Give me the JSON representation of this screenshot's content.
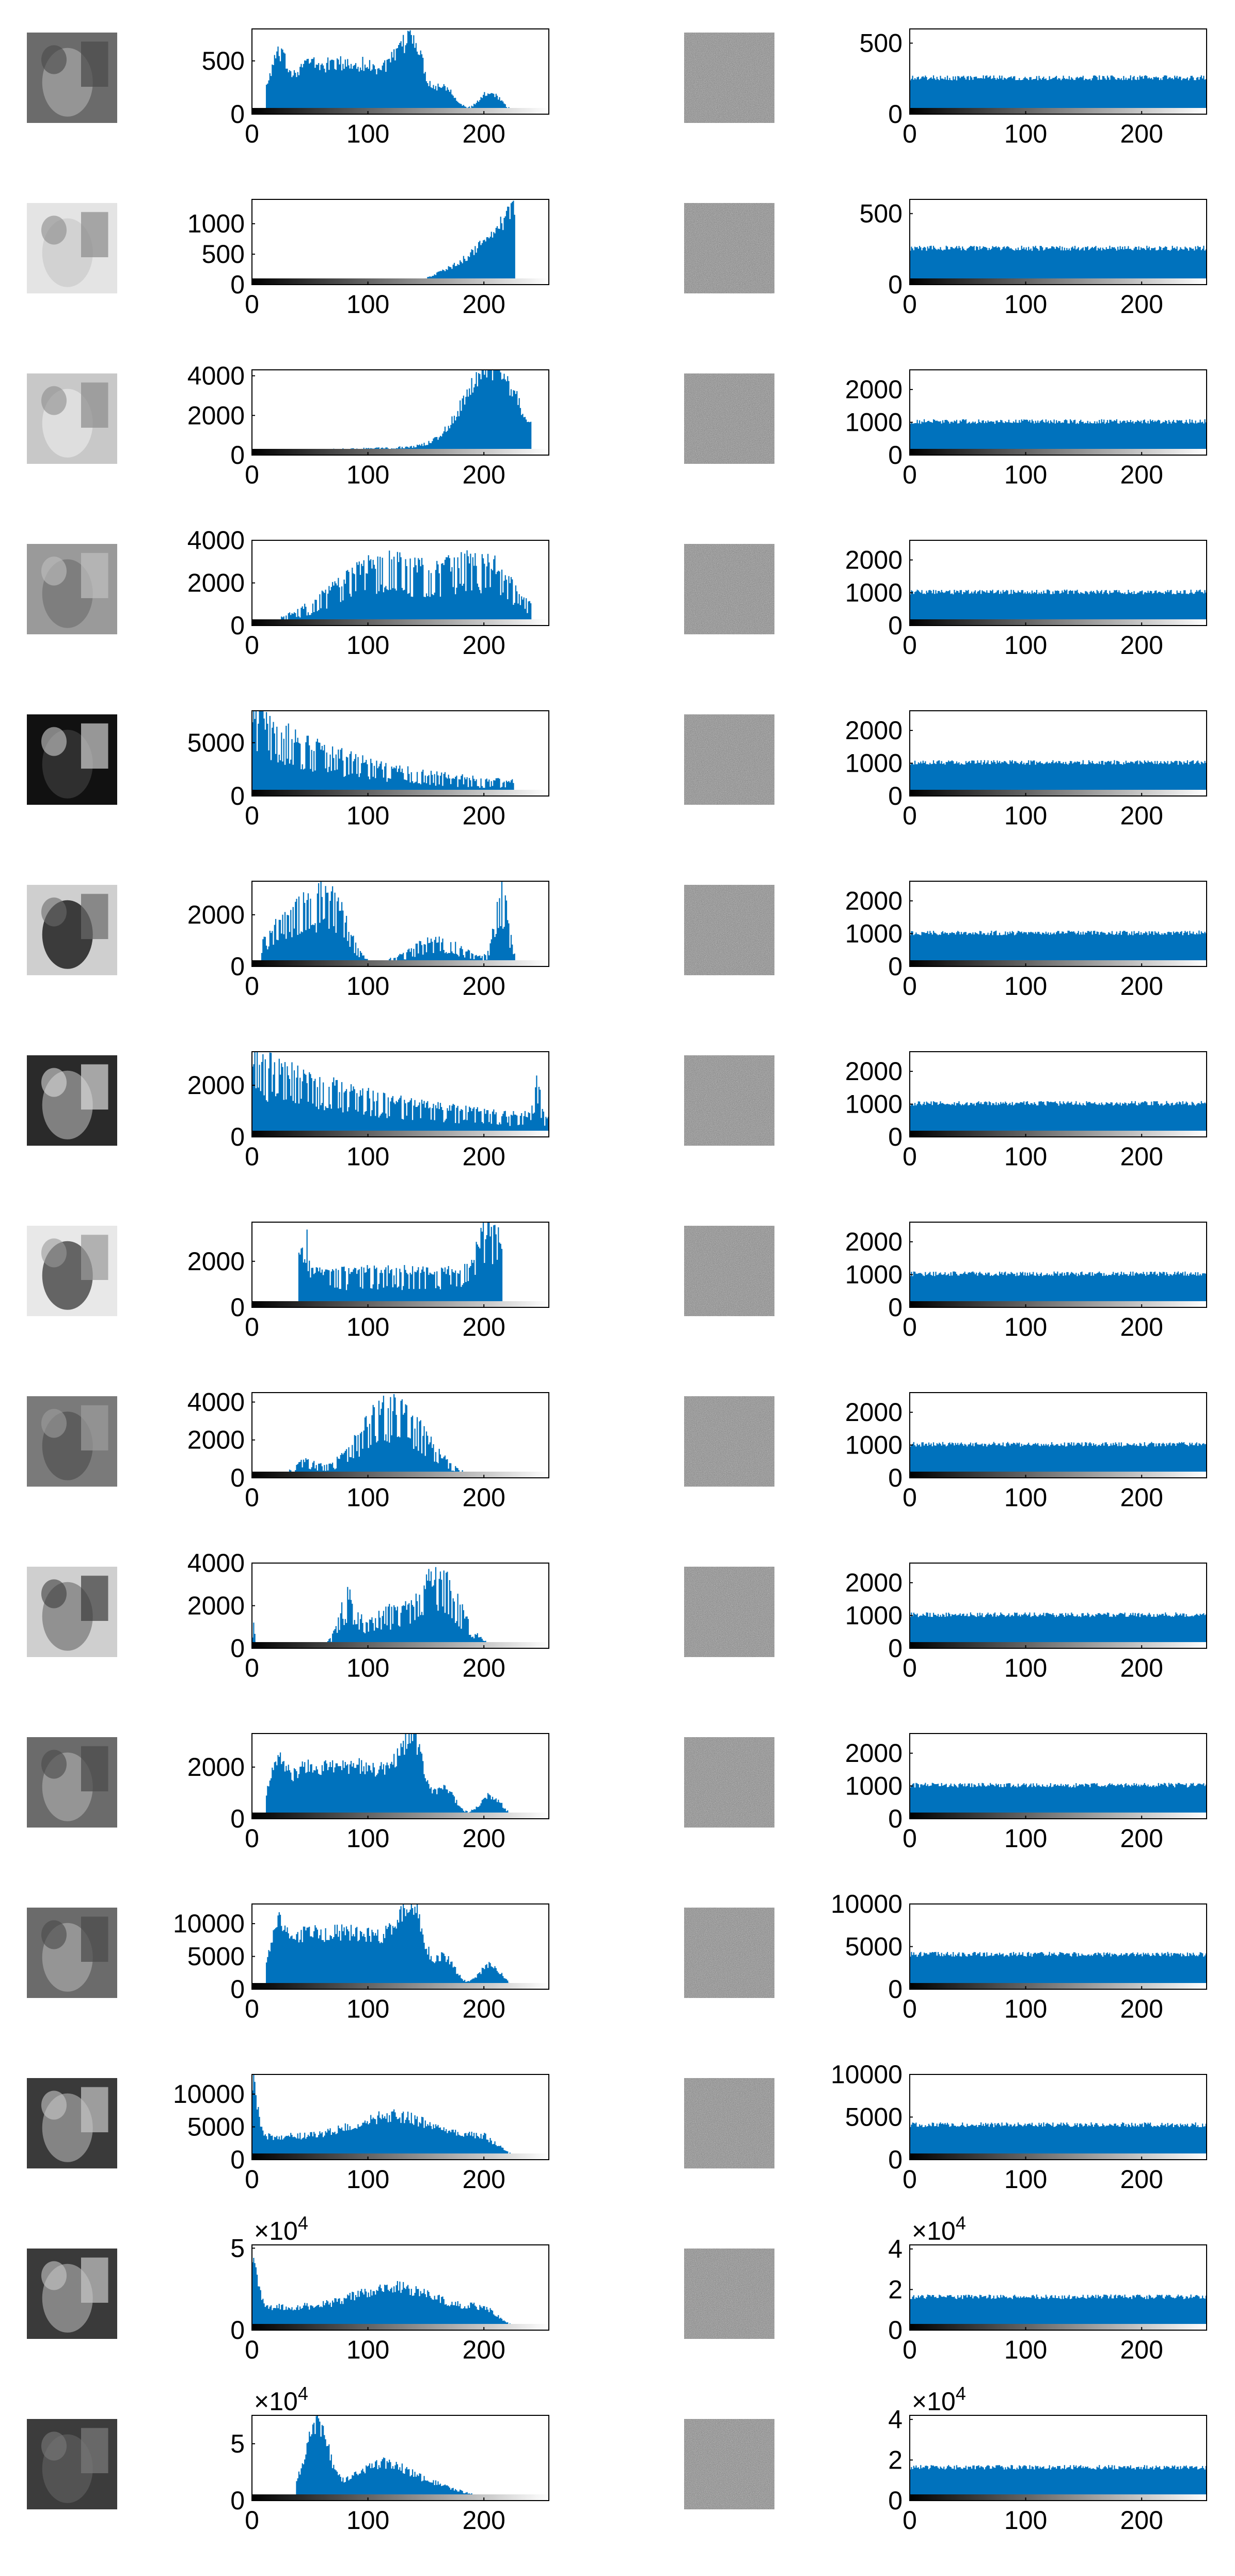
{
  "figure": {
    "colors": {
      "bar": "#0072BD",
      "axis": "#000000",
      "background": "#ffffff"
    }
  },
  "chart_data": [
    {
      "type": "bar",
      "row": 1,
      "side": "original",
      "thumbnail": "lena-thumbnail",
      "xticks": [
        0,
        100,
        200
      ],
      "yticks": [
        "0",
        "500"
      ],
      "ylim": [
        0,
        800
      ],
      "exponent": "",
      "shape": "lena",
      "peak": 600
    },
    {
      "type": "bar",
      "row": 1,
      "side": "encrypted",
      "thumbnail": "noise-thumbnail",
      "xticks": [
        0,
        100,
        200
      ],
      "yticks": [
        "0",
        "500"
      ],
      "ylim": [
        0,
        600
      ],
      "exponent": "",
      "shape": "flat",
      "level": 256
    },
    {
      "type": "bar",
      "row": 2,
      "side": "original",
      "thumbnail": "aerial-thumbnail",
      "xticks": [
        0,
        100,
        200
      ],
      "yticks": [
        "0",
        "500",
        "1000"
      ],
      "ylim": [
        0,
        1400
      ],
      "exponent": "",
      "shape": "ramp",
      "peak": 1300
    },
    {
      "type": "bar",
      "row": 2,
      "side": "encrypted",
      "thumbnail": "noise-thumbnail",
      "xticks": [
        0,
        100,
        200
      ],
      "yticks": [
        "0",
        "500"
      ],
      "ylim": [
        0,
        600
      ],
      "exponent": "",
      "shape": "flat",
      "level": 256
    },
    {
      "type": "bar",
      "row": 3,
      "side": "original",
      "thumbnail": "map-thumbnail",
      "xticks": [
        0,
        100,
        200
      ],
      "yticks": [
        "0",
        "2000",
        "4000"
      ],
      "ylim": [
        0,
        4300
      ],
      "exponent": "",
      "shape": "ramp2",
      "peak": 4250
    },
    {
      "type": "bar",
      "row": 3,
      "side": "encrypted",
      "thumbnail": "noise-thumbnail",
      "xticks": [
        0,
        100,
        200
      ],
      "yticks": [
        "0",
        "1000",
        "2000"
      ],
      "ylim": [
        0,
        2600
      ],
      "exponent": "",
      "shape": "flat",
      "level": 1024
    },
    {
      "type": "bar",
      "row": 4,
      "side": "original",
      "thumbnail": "fingerprint-thumbnail",
      "xticks": [
        0,
        100,
        200
      ],
      "yticks": [
        "0",
        "2000",
        "4000"
      ],
      "ylim": [
        0,
        4000
      ],
      "exponent": "",
      "shape": "plateau",
      "peak": 3200
    },
    {
      "type": "bar",
      "row": 4,
      "side": "encrypted",
      "thumbnail": "noise-thumbnail",
      "xticks": [
        0,
        100,
        200
      ],
      "yticks": [
        "0",
        "1000",
        "2000"
      ],
      "ylim": [
        0,
        2600
      ],
      "exponent": "",
      "shape": "flat",
      "level": 1024
    },
    {
      "type": "bar",
      "row": 5,
      "side": "original",
      "thumbnail": "room-thumbnail",
      "xticks": [
        0,
        100,
        200
      ],
      "yticks": [
        "0",
        "5000"
      ],
      "ylim": [
        0,
        8000
      ],
      "exponent": "",
      "shape": "decay",
      "peak": 8000
    },
    {
      "type": "bar",
      "row": 5,
      "side": "encrypted",
      "thumbnail": "noise-thumbnail",
      "xticks": [
        0,
        100,
        200
      ],
      "yticks": [
        "0",
        "1000",
        "2000"
      ],
      "ylim": [
        0,
        2600
      ],
      "exponent": "",
      "shape": "flat",
      "level": 1024
    },
    {
      "type": "bar",
      "row": 6,
      "side": "original",
      "thumbnail": "camera-woman-thumbnail",
      "xticks": [
        0,
        100,
        200
      ],
      "yticks": [
        "0",
        "2000"
      ],
      "ylim": [
        0,
        3300
      ],
      "exponent": "",
      "shape": "bimodal",
      "peak": 3100
    },
    {
      "type": "bar",
      "row": 6,
      "side": "encrypted",
      "thumbnail": "noise-thumbnail",
      "xticks": [
        0,
        100,
        200
      ],
      "yticks": [
        "0",
        "1000",
        "2000"
      ],
      "ylim": [
        0,
        2600
      ],
      "exponent": "",
      "shape": "flat",
      "level": 1024
    },
    {
      "type": "bar",
      "row": 7,
      "side": "original",
      "thumbnail": "crowd-thumbnail",
      "xticks": [
        0,
        100,
        200
      ],
      "yticks": [
        "0",
        "2000"
      ],
      "ylim": [
        0,
        3300
      ],
      "exponent": "",
      "shape": "crowd",
      "peak": 3300
    },
    {
      "type": "bar",
      "row": 7,
      "side": "encrypted",
      "thumbnail": "noise-thumbnail",
      "xticks": [
        0,
        100,
        200
      ],
      "yticks": [
        "0",
        "1000",
        "2000"
      ],
      "ylim": [
        0,
        2600
      ],
      "exponent": "",
      "shape": "flat",
      "level": 1024
    },
    {
      "type": "bar",
      "row": 8,
      "side": "original",
      "thumbnail": "man-thumbnail",
      "xticks": [
        0,
        100,
        200
      ],
      "yticks": [
        "0",
        "2000"
      ],
      "ylim": [
        0,
        3700
      ],
      "exponent": "",
      "shape": "uprise",
      "peak": 3700
    },
    {
      "type": "bar",
      "row": 8,
      "side": "encrypted",
      "thumbnail": "noise-thumbnail",
      "xticks": [
        0,
        100,
        200
      ],
      "yticks": [
        "0",
        "1000",
        "2000"
      ],
      "ylim": [
        0,
        2600
      ],
      "exponent": "",
      "shape": "flat",
      "level": 1024
    },
    {
      "type": "bar",
      "row": 9,
      "side": "original",
      "thumbnail": "field-thumbnail",
      "xticks": [
        0,
        100,
        200
      ],
      "yticks": [
        "0",
        "2000",
        "4000"
      ],
      "ylim": [
        0,
        4500
      ],
      "exponent": "",
      "shape": "bell",
      "peak": 4300
    },
    {
      "type": "bar",
      "row": 9,
      "side": "encrypted",
      "thumbnail": "noise-thumbnail",
      "xticks": [
        0,
        100,
        200
      ],
      "yticks": [
        "0",
        "1000",
        "2000"
      ],
      "ylim": [
        0,
        2600
      ],
      "exponent": "",
      "shape": "flat",
      "level": 1024
    },
    {
      "type": "bar",
      "row": 10,
      "side": "original",
      "thumbnail": "woman-thumbnail",
      "xticks": [
        0,
        100,
        200
      ],
      "yticks": [
        "0",
        "2000",
        "4000"
      ],
      "ylim": [
        0,
        4000
      ],
      "exponent": "",
      "shape": "woman",
      "peak": 3700
    },
    {
      "type": "bar",
      "row": 10,
      "side": "encrypted",
      "thumbnail": "noise-thumbnail",
      "xticks": [
        0,
        100,
        200
      ],
      "yticks": [
        "0",
        "1000",
        "2000"
      ],
      "ylim": [
        0,
        2600
      ],
      "exponent": "",
      "shape": "flat",
      "level": 1024
    },
    {
      "type": "bar",
      "row": 11,
      "side": "original",
      "thumbnail": "lena-thumbnail",
      "xticks": [
        0,
        100,
        200
      ],
      "yticks": [
        "0",
        "2000"
      ],
      "ylim": [
        0,
        3300
      ],
      "exponent": "",
      "shape": "lena",
      "peak": 2600
    },
    {
      "type": "bar",
      "row": 11,
      "side": "encrypted",
      "thumbnail": "noise-thumbnail",
      "xticks": [
        0,
        100,
        200
      ],
      "yticks": [
        "0",
        "1000",
        "2000"
      ],
      "ylim": [
        0,
        2600
      ],
      "exponent": "",
      "shape": "flat",
      "level": 1024
    },
    {
      "type": "bar",
      "row": 12,
      "side": "original",
      "thumbnail": "lena-thumbnail",
      "xticks": [
        0,
        100,
        200
      ],
      "yticks": [
        "0",
        "5000",
        "10000"
      ],
      "ylim": [
        0,
        13000
      ],
      "exponent": "",
      "shape": "lena",
      "peak": 11000
    },
    {
      "type": "bar",
      "row": 12,
      "side": "encrypted",
      "thumbnail": "noise-thumbnail",
      "xticks": [
        0,
        100,
        200
      ],
      "yticks": [
        "0",
        "5000",
        "10000"
      ],
      "ylim": [
        0,
        10000
      ],
      "exponent": "",
      "shape": "flat",
      "level": 4096
    },
    {
      "type": "bar",
      "row": 13,
      "side": "original",
      "thumbnail": "barbara-thumbnail",
      "xticks": [
        0,
        100,
        200
      ],
      "yticks": [
        "0",
        "5000",
        "10000"
      ],
      "ylim": [
        0,
        13000
      ],
      "exponent": "",
      "shape": "barbara",
      "peak": 13000
    },
    {
      "type": "bar",
      "row": 13,
      "side": "encrypted",
      "thumbnail": "noise-thumbnail",
      "xticks": [
        0,
        100,
        200
      ],
      "yticks": [
        "0",
        "5000",
        "10000"
      ],
      "ylim": [
        0,
        10000
      ],
      "exponent": "",
      "shape": "flat",
      "level": 4096
    },
    {
      "type": "bar",
      "row": 14,
      "side": "original",
      "thumbnail": "barbara-thumbnail",
      "xticks": [
        0,
        100,
        200
      ],
      "yticks": [
        "0",
        "5"
      ],
      "ylim": [
        0,
        5.2
      ],
      "exponent": "×10^4",
      "shape": "barbara",
      "peak": 5.1
    },
    {
      "type": "bar",
      "row": 14,
      "side": "encrypted",
      "thumbnail": "noise-thumbnail",
      "xticks": [
        0,
        100,
        200
      ],
      "yticks": [
        "0",
        "2",
        "4"
      ],
      "ylim": [
        0,
        4.2
      ],
      "exponent": "×10^4",
      "shape": "flat",
      "level": 1.64
    },
    {
      "type": "bar",
      "row": 15,
      "side": "original",
      "thumbnail": "circuit-thumbnail",
      "xticks": [
        0,
        100,
        200
      ],
      "yticks": [
        "0",
        "5"
      ],
      "ylim": [
        0,
        7.5
      ],
      "exponent": "×10^4",
      "shape": "circuit",
      "peak": 7.2
    },
    {
      "type": "bar",
      "row": 15,
      "side": "encrypted",
      "thumbnail": "noise-thumbnail",
      "xticks": [
        0,
        100,
        200
      ],
      "yticks": [
        "0",
        "2",
        "4"
      ],
      "ylim": [
        0,
        4.2
      ],
      "exponent": "×10^4",
      "shape": "flat",
      "level": 1.64
    }
  ]
}
